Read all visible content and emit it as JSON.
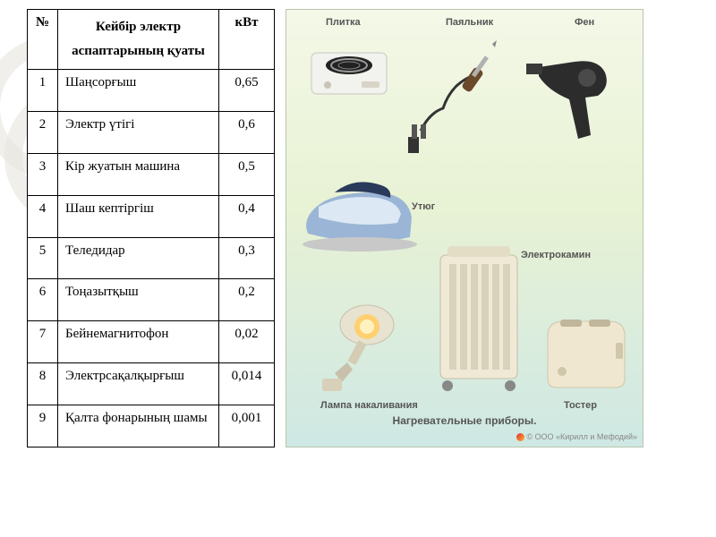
{
  "table": {
    "headers": {
      "num": "№",
      "name": "Кейбір электр аспаптарының қуаты",
      "unit": "кВт"
    },
    "rows": [
      {
        "n": "1",
        "name": "Шаңсорғыш",
        "v": "0,65"
      },
      {
        "n": "2",
        "name": "Электр үтігі",
        "v": "0,6"
      },
      {
        "n": "3",
        "name": "Кір жуатын машина",
        "v": "0,5"
      },
      {
        "n": "4",
        "name": "Шаш кептіргіш",
        "v": "0,4"
      },
      {
        "n": "5",
        "name": "Теледидар",
        "v": "0,3"
      },
      {
        "n": "6",
        "name": "Тоңазытқыш",
        "v": "0,2"
      },
      {
        "n": "7",
        "name": "Бейнемагнитофон",
        "v": "0,02"
      },
      {
        "n": "8",
        "name": "Электрсақалқырғыш",
        "v": "0,014"
      },
      {
        "n": "9",
        "name": "Қалта фонарының шамы",
        "v": "0,001"
      }
    ]
  },
  "panel": {
    "labels": {
      "plitka": "Плитка",
      "payalnik": "Паяльник",
      "fen": "Фен",
      "utyug": "Утюг",
      "elektrokamin": "Электрокамин",
      "lampa": "Лампа накаливания",
      "toster": "Тостер"
    },
    "caption": "Нагревательные приборы.",
    "copyright": "© ООО «Кирилл и Мефодий»",
    "colors": {
      "bg_top": "#f4f8e8",
      "bg_mid": "#e8f2d4",
      "bg_bottom": "#cfe8e4",
      "border": "#b9c7ad",
      "label": "#555555",
      "iron_body": "#9ab5d6",
      "iron_light": "#dce8f4",
      "heater_body": "#efe9d6",
      "heater_fin": "#d8d2bc",
      "toaster_body": "#efe7cf",
      "dryer_body": "#3a3a3a",
      "lamp_glow": "#ffd070",
      "cooker_body": "#f2f2ee"
    }
  },
  "style": {
    "page_bg": "#ffffff",
    "circle_stroke": "#e8e4dd",
    "table_border": "#000000",
    "table_font": "Times New Roman",
    "table_fontsize": 15,
    "panel_font": "Arial",
    "panel_label_fontsize": 11
  }
}
